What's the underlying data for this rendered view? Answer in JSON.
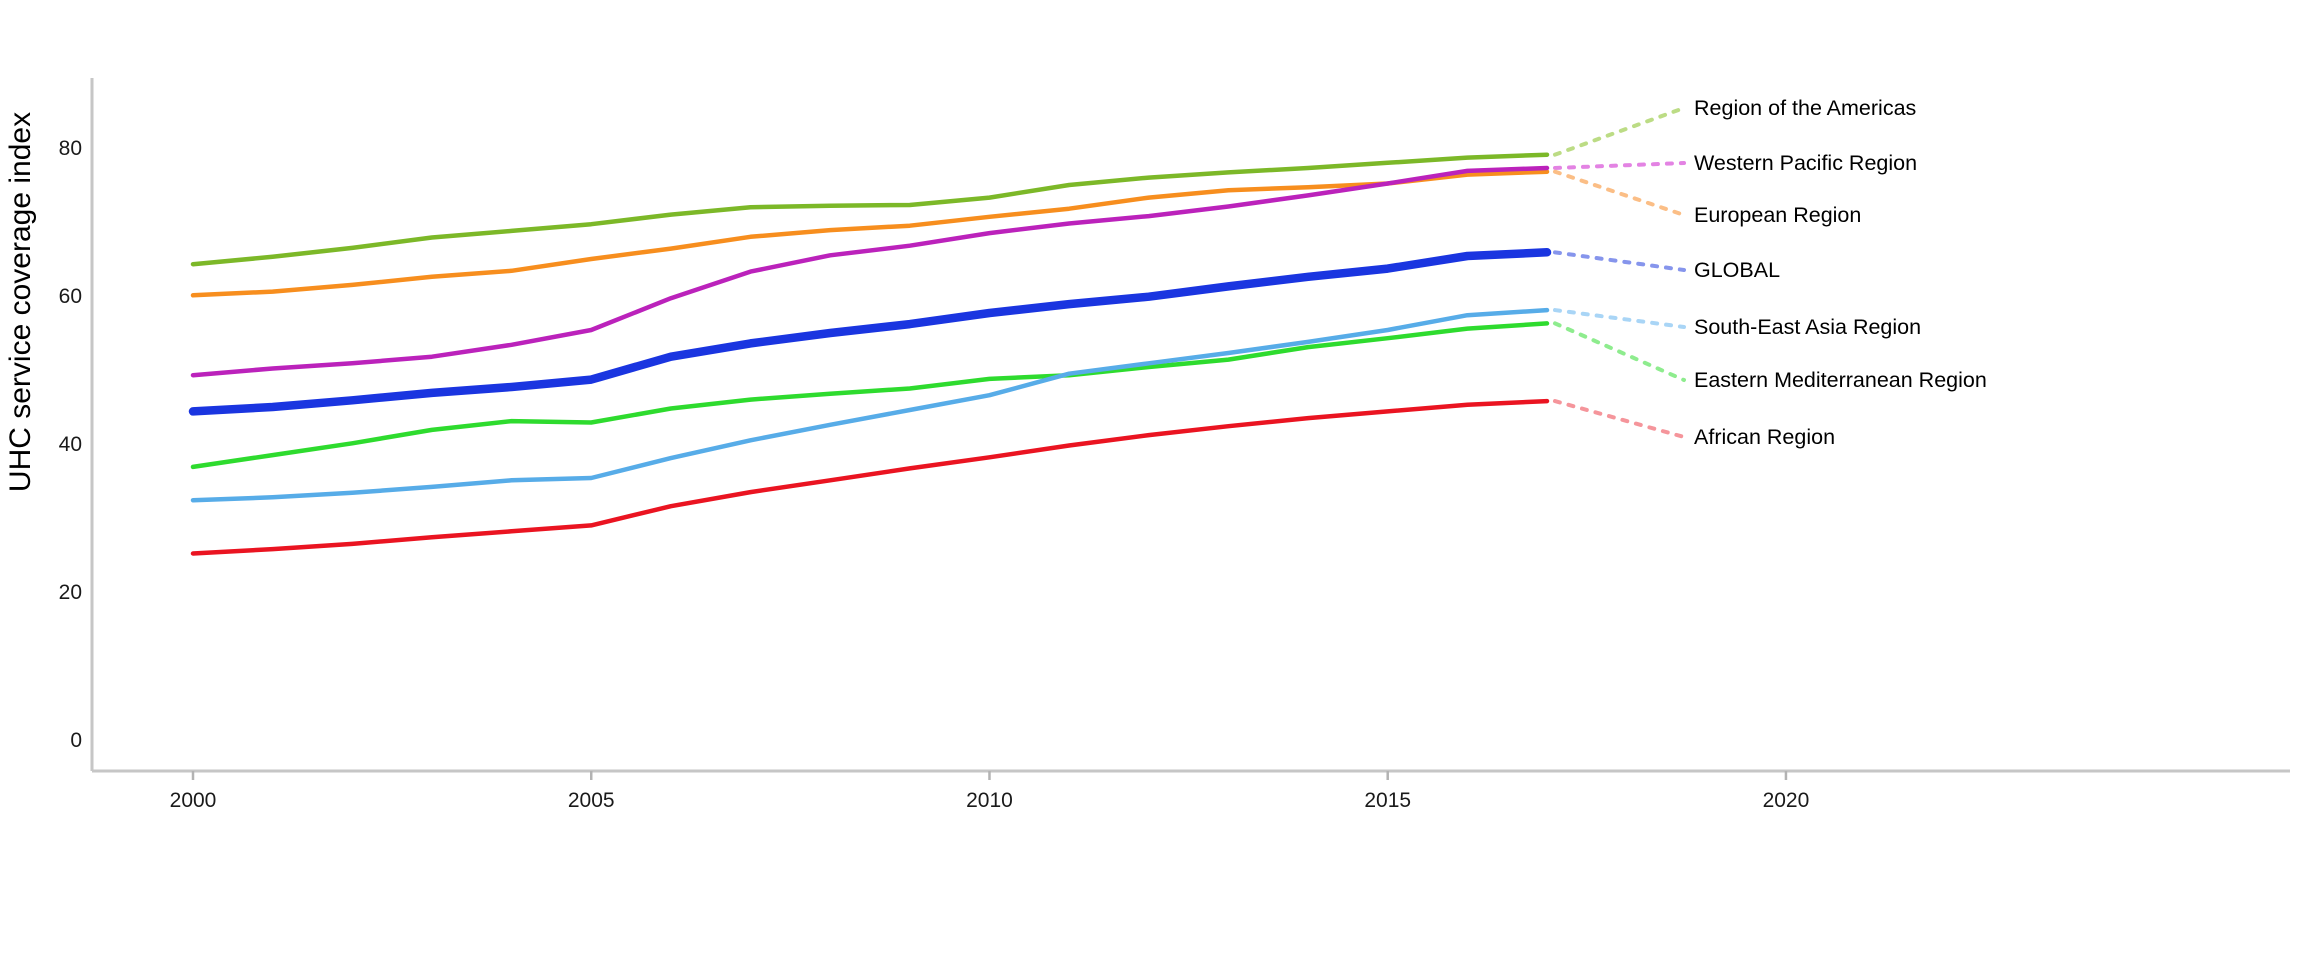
{
  "page": {
    "background": "#ffffff",
    "tick_label_color": "#1a1a1a",
    "axis_line_color": "#c6c6c6",
    "tick_mark_color": "#b3b3b3",
    "label_text_color": "#000000"
  },
  "chart_data": {
    "type": "line",
    "title": "",
    "ylabel": "UHC service coverage index",
    "xlabel": "",
    "grid": false,
    "legend_position": "right of line ends, connected by dotted leader lines",
    "ylim": [
      0,
      94
    ],
    "xlim": [
      1998.7,
      2026.5
    ],
    "yticks": [
      0,
      20,
      40,
      60,
      80
    ],
    "xticks": [
      2000,
      2005,
      2010,
      2015,
      2020
    ],
    "x": [
      2000,
      2001,
      2002,
      2003,
      2004,
      2005,
      2006,
      2007,
      2008,
      2009,
      2010,
      2011,
      2012,
      2013,
      2014,
      2015,
      2016,
      2017
    ],
    "series": [
      {
        "name": "European Region",
        "color": "#F78E1E",
        "leader_color": "#FBBE86",
        "line_width": 4.5,
        "values": [
          60.1,
          60.6,
          61.5,
          62.6,
          63.4,
          65.0,
          66.4,
          68.0,
          68.9,
          69.5,
          70.7,
          71.8,
          73.3,
          74.3,
          74.7,
          75.2,
          76.4,
          76.8
        ]
      },
      {
        "name": "Region of the Americas",
        "color": "#7CB828",
        "leader_color": "#BCDC85",
        "line_width": 4.5,
        "values": [
          64.3,
          65.3,
          66.5,
          67.9,
          68.8,
          69.7,
          71.0,
          72.0,
          72.2,
          72.3,
          73.3,
          75.0,
          76.0,
          76.7,
          77.3,
          78.0,
          78.7,
          79.1
        ]
      },
      {
        "name": "Western Pacific Region",
        "color": "#BB22BB",
        "leader_color": "#E383E3",
        "line_width": 4.5,
        "values": [
          49.3,
          50.2,
          50.9,
          51.8,
          53.4,
          55.4,
          59.7,
          63.3,
          65.5,
          66.8,
          68.5,
          69.8,
          70.8,
          72.1,
          73.6,
          75.2,
          76.9,
          77.3
        ]
      },
      {
        "name": "GLOBAL",
        "color": "#1A35E0",
        "leader_color": "#8695EC",
        "line_width": 8.5,
        "values": [
          44.4,
          45.0,
          45.9,
          46.9,
          47.7,
          48.7,
          51.8,
          53.6,
          55.0,
          56.2,
          57.7,
          58.9,
          59.9,
          61.3,
          62.6,
          63.7,
          65.4,
          65.9
        ]
      },
      {
        "name": "Eastern Mediterranean Region",
        "color": "#2EDB2E",
        "leader_color": "#8EEC8E",
        "line_width": 4.5,
        "values": [
          36.9,
          38.5,
          40.1,
          41.9,
          43.1,
          42.9,
          44.8,
          46.0,
          46.8,
          47.5,
          48.8,
          49.3,
          50.4,
          51.4,
          53.1,
          54.3,
          55.6,
          56.3
        ]
      },
      {
        "name": "South-East Asia Region",
        "color": "#57ACE8",
        "leader_color": "#A9D5F6",
        "line_width": 4.5,
        "values": [
          32.4,
          32.8,
          33.4,
          34.2,
          35.1,
          35.4,
          38.1,
          40.5,
          42.6,
          44.6,
          46.6,
          49.5,
          50.9,
          52.3,
          53.8,
          55.4,
          57.4,
          58.1
        ]
      },
      {
        "name": "African Region",
        "color": "#EA1421",
        "leader_color": "#F5959B",
        "line_width": 4.5,
        "values": [
          25.2,
          25.8,
          26.5,
          27.4,
          28.2,
          29.0,
          31.6,
          33.5,
          35.1,
          36.7,
          38.2,
          39.8,
          41.2,
          42.4,
          43.5,
          44.4,
          45.3,
          45.8
        ]
      }
    ]
  }
}
